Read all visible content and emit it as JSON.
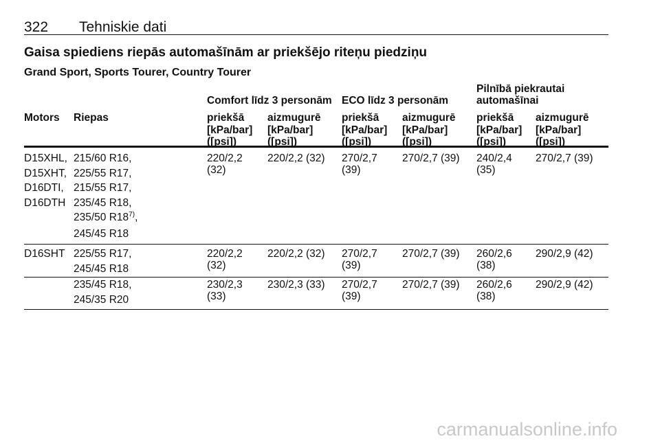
{
  "header": {
    "page_number": "322",
    "title": "Tehniskie dati"
  },
  "section_title": "Gaisa spiediens riepās automašīnām ar priekšējo riteņu piedziņu",
  "subtitle": "Grand Sport, Sports Tourer, Country Tourer",
  "table": {
    "group_headers": [
      "Comfort līdz 3 personām",
      "ECO līdz 3 personām",
      "Pilnībā piekrautai automašīnai"
    ],
    "columns": [
      "Motors",
      "Riepas",
      "priekšā",
      "aizmugurē",
      "priekšā",
      "aizmugurē",
      "priekšā",
      "aizmugurē"
    ],
    "units": [
      "[kPa/bar] ([psi])",
      "[kPa/bar] ([psi])",
      "[kPa/bar] ([psi])",
      "[kPa/bar] ([psi])",
      "[kPa/bar] ([psi])",
      "[kPa/bar] ([psi])"
    ],
    "rows": [
      {
        "motors": [
          "D15XHL,",
          "D15XHT,",
          "D16DTI,",
          "D16DTH"
        ],
        "tires": [
          "215/60 R16,",
          "225/55 R17,",
          "215/55 R17,",
          "235/45 R18,",
          {
            "text": "235/50 R18",
            "note": "7)",
            "suffix": ","
          },
          "245/45 R18"
        ],
        "values": [
          "220/2,2 (32)",
          "220/2,2 (32)",
          "270/2,7 (39)",
          "270/2,7 (39)",
          "240/2,4 (35)",
          "270/2,7 (39)"
        ]
      },
      {
        "motors": [
          "D16SHT"
        ],
        "tires": [
          "225/55 R17,",
          "245/45 R18"
        ],
        "values": [
          "220/2,2 (32)",
          "220/2,2 (32)",
          "270/2,7 (39)",
          "270/2,7 (39)",
          "260/2,6 (38)",
          "290/2,9 (42)"
        ]
      },
      {
        "motors": [],
        "tires": [
          "235/45 R18,",
          "245/35 R20"
        ],
        "values": [
          "230/2,3 (33)",
          "230/2,3 (33)",
          "270/2,7 (39)",
          "270/2,7 (39)",
          "260/2,6 (38)",
          "290/2,9 (42)"
        ]
      }
    ]
  },
  "watermark": "carmanualsonline.info"
}
